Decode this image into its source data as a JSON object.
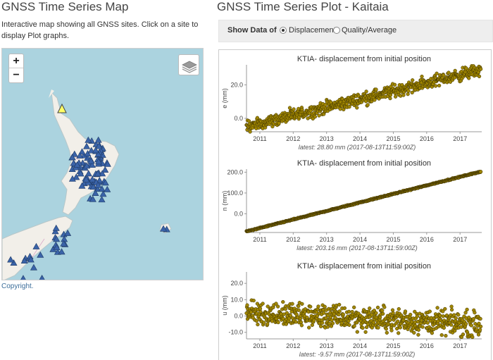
{
  "map_section": {
    "title": "GNSS Time Series Map",
    "description": "Interactive map showing all GNSS sites. Click on a site to display Plot graphs.",
    "zoom_in_label": "+",
    "zoom_out_label": "−",
    "copyright": "Copyright.",
    "colors": {
      "water": "#abd3df",
      "land": "#f2efe9",
      "site_marker": "#3a63a8",
      "selected_marker": "#ffff66"
    }
  },
  "plot_section": {
    "title": "GNSS Time Series Plot - Kaitaia",
    "show_data_label": "Show Data of",
    "options": [
      {
        "label": "Displacement",
        "selected": true
      },
      {
        "label": "Quality/Average",
        "selected": false
      }
    ]
  },
  "chart_data": [
    {
      "type": "scatter",
      "title": "KTIA- displacement from initial position",
      "ylabel": "e (mm)",
      "xlabel": "",
      "x_ticks": [
        "2011",
        "2012",
        "2013",
        "2014",
        "2015",
        "2016",
        "2017"
      ],
      "y_ticks": [
        "0.0",
        "20.0"
      ],
      "ylim": [
        -8,
        32
      ],
      "xlim": [
        2010.6,
        2017.65
      ],
      "trend": {
        "start": [
          2010.6,
          -5
        ],
        "end": [
          2017.62,
          29
        ]
      },
      "scatter_amplitude": 3,
      "annotation": "latest: 28.80 mm (2017-08-13T11:59:00Z)",
      "marker_color": "#a08600"
    },
    {
      "type": "scatter",
      "title": "KTIA- displacement from initial position",
      "ylabel": "n (mm)",
      "xlabel": "",
      "x_ticks": [
        "2011",
        "2012",
        "2013",
        "2014",
        "2015",
        "2016",
        "2017"
      ],
      "y_ticks": [
        "0.0",
        "100.0",
        "200.0"
      ],
      "ylim": [
        -90,
        215
      ],
      "xlim": [
        2010.6,
        2017.65
      ],
      "trend": {
        "start": [
          2010.6,
          -85
        ],
        "end": [
          2017.62,
          203
        ]
      },
      "scatter_amplitude": 2,
      "annotation": "latest: 203.16 mm (2017-08-13T11:59:00Z)",
      "marker_color": "#a08600"
    },
    {
      "type": "scatter",
      "title": "KTIA- displacement from initial position",
      "ylabel": "u (mm)",
      "xlabel": "",
      "x_ticks": [
        "2011",
        "2012",
        "2013",
        "2014",
        "2015",
        "2016",
        "2017"
      ],
      "y_ticks": [
        "-10.0",
        "0.0",
        "10.0",
        "20.0"
      ],
      "ylim": [
        -14,
        27
      ],
      "xlim": [
        2010.6,
        2017.65
      ],
      "trend": {
        "start": [
          2010.6,
          2
        ],
        "end": [
          2017.62,
          -5
        ]
      },
      "scatter_amplitude": 6,
      "annotation": "latest: -9.57 mm (2017-08-13T11:59:00Z)",
      "marker_color": "#a08600"
    }
  ]
}
